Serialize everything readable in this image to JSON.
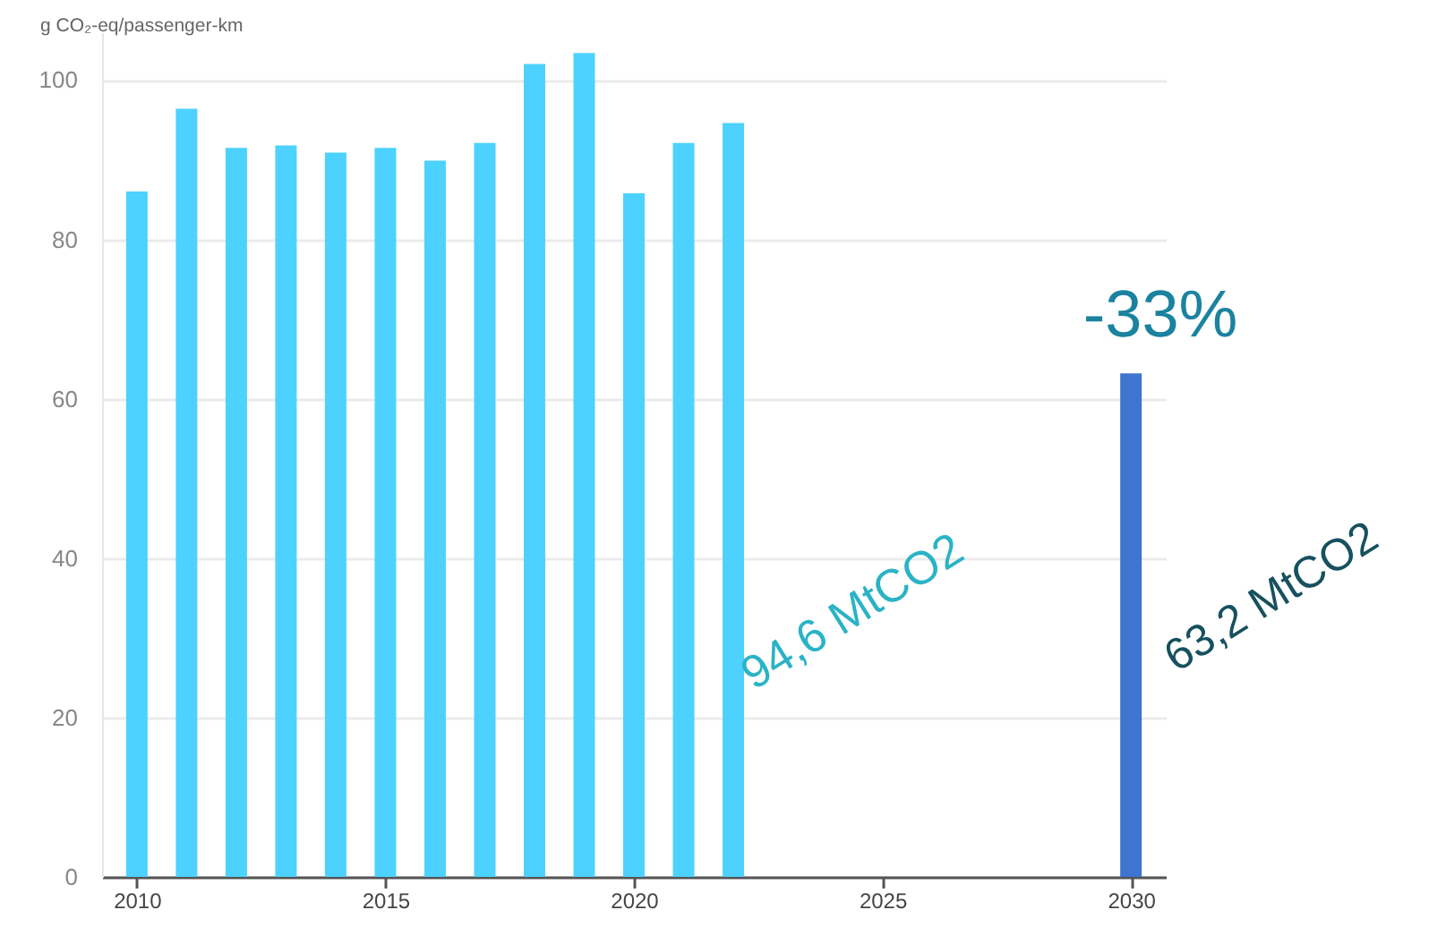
{
  "chart_data": {
    "type": "bar",
    "ylabel": "g CO₂-eq/passenger-km",
    "x": [
      2010,
      2011,
      2012,
      2013,
      2014,
      2015,
      2016,
      2017,
      2018,
      2019,
      2020,
      2021,
      2022,
      2030
    ],
    "values": [
      86,
      96.4,
      91.5,
      91.8,
      90.9,
      91.5,
      89.9,
      92.1,
      102,
      103.4,
      85.8,
      92.1,
      94.6,
      63.2
    ],
    "colors": [
      "#4dd2ff",
      "#4dd2ff",
      "#4dd2ff",
      "#4dd2ff",
      "#4dd2ff",
      "#4dd2ff",
      "#4dd2ff",
      "#4dd2ff",
      "#4dd2ff",
      "#4dd2ff",
      "#4dd2ff",
      "#4dd2ff",
      "#4dd2ff",
      "#3f74d1"
    ],
    "xlim": [
      2009.3,
      2030.7
    ],
    "xticks": [
      2010,
      2015,
      2020,
      2025,
      2030
    ],
    "ylim": [
      0,
      106
    ],
    "yticks": [
      0,
      20,
      40,
      60,
      80,
      100
    ],
    "grid": "y",
    "annotations": [
      "94,6 MtCO2",
      "63,2 MtCO2",
      "-33%"
    ]
  }
}
